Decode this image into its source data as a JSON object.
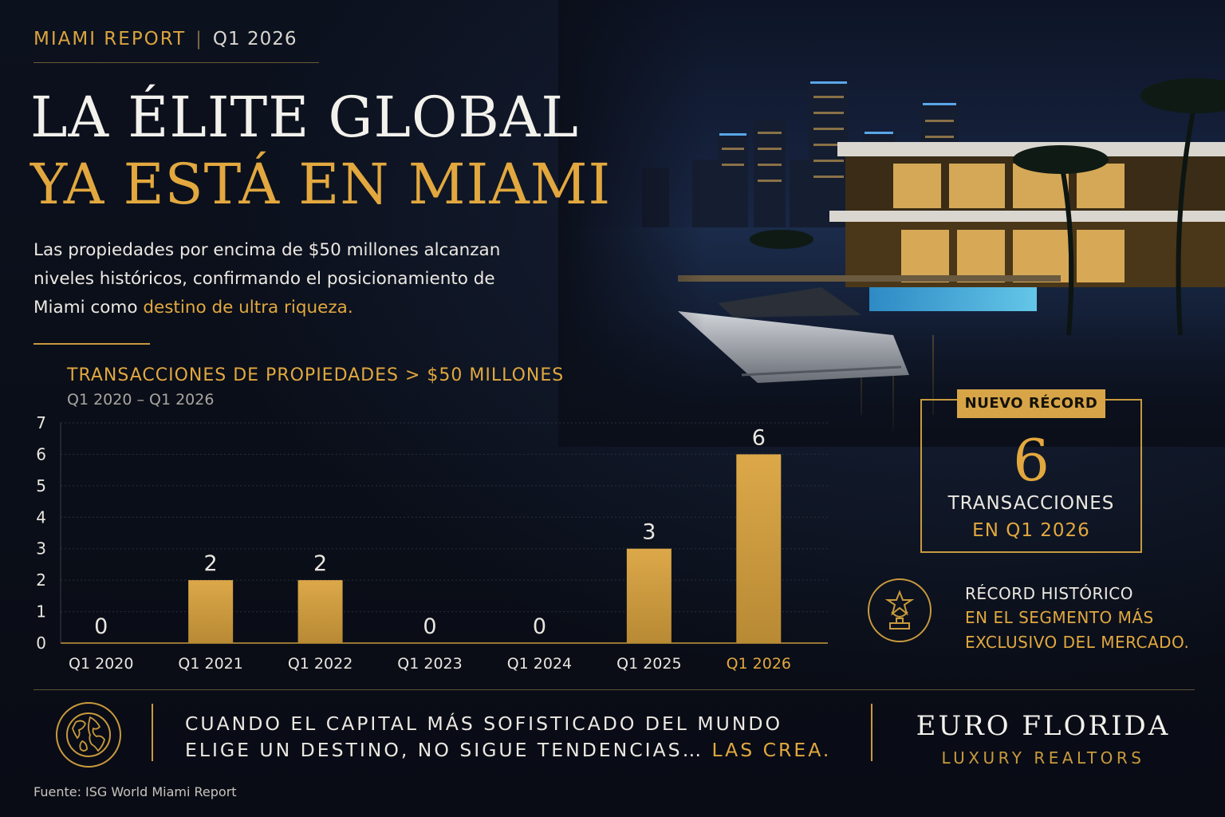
{
  "header": {
    "report_label": "MIAMI REPORT",
    "separator": "|",
    "period": "Q1 2026",
    "title_line1": "LA ÉLITE GLOBAL",
    "title_line2": "YA ESTÁ EN MIAMI"
  },
  "intro": {
    "text_main": "Las propiedades por encima de $50 millones alcanzan niveles históricos, confirmando el posicionamiento de Miami como ",
    "text_highlight": "destino de ultra riqueza."
  },
  "chart_data": {
    "type": "bar",
    "title": "TRANSACCIONES DE PROPIEDADES > $50 MILLONES",
    "subtitle": "Q1 2020 – Q1 2026",
    "categories": [
      "Q1 2020",
      "Q1 2021",
      "Q1 2022",
      "Q1 2023",
      "Q1 2024",
      "Q1 2025",
      "Q1 2026"
    ],
    "values": [
      0,
      2,
      2,
      0,
      0,
      3,
      6
    ],
    "highlight_category": "Q1 2026",
    "ylim": [
      0,
      7
    ],
    "yticks": [
      0,
      1,
      2,
      3,
      4,
      5,
      6,
      7
    ],
    "grid": true,
    "bar_color": "#dca849",
    "label_color": "#e9e6df",
    "highlight_color": "#e2a83f"
  },
  "record": {
    "badge": "NUEVO RÉCORD",
    "number": "6",
    "line1": "TRANSACCIONES",
    "line2": "EN Q1 2026"
  },
  "historic": {
    "icon": "trophy-star-icon",
    "line1": "RÉCORD HISTÓRICO",
    "line2": "EN EL SEGMENTO MÁS",
    "line3": "EXCLUSIVO DEL MERCADO."
  },
  "footer": {
    "icon": "globe-icon",
    "quote_line1": "CUANDO EL CAPITAL MÁS SOFISTICADO DEL MUNDO",
    "quote_line2": "ELIGE UN DESTINO, NO SIGUE TENDENCIAS… ",
    "quote_highlight": "LAS CREA.",
    "brand_name": "EURO FLORIDA",
    "brand_sub": "LUXURY REALTORS",
    "source": "Fuente: ISG World Miami Report"
  },
  "colors": {
    "gold": "#e2a83f",
    "background": "#0b0f1a",
    "text": "#ece9e2"
  }
}
